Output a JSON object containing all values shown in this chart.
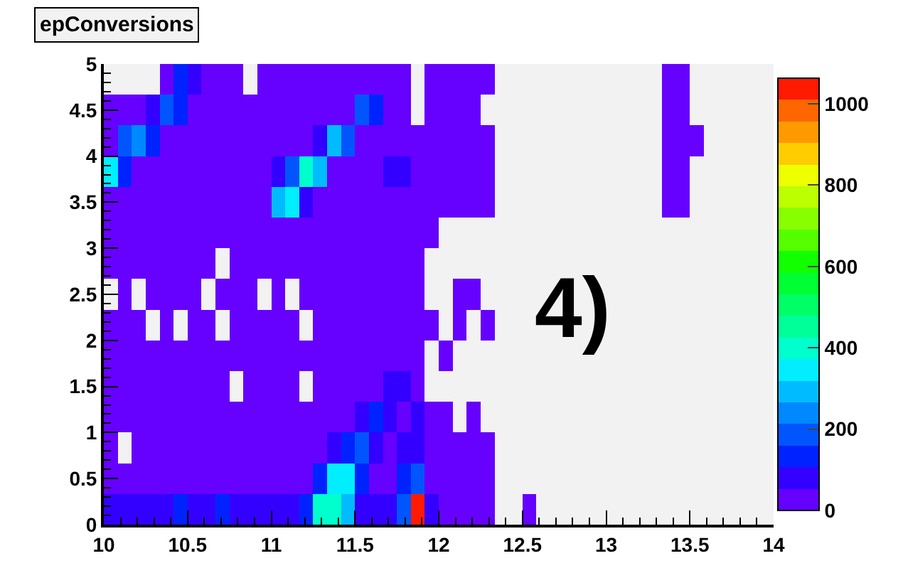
{
  "chart_data": {
    "type": "heatmap",
    "title": "epConversions",
    "annotations": [
      "4)"
    ],
    "xlim": [
      10,
      14
    ],
    "ylim": [
      0,
      5
    ],
    "xticks": [
      10,
      10.5,
      11,
      11.5,
      12,
      12.5,
      13,
      13.5,
      14
    ],
    "yticks": [
      0,
      0.5,
      1,
      1.5,
      2,
      2.5,
      3,
      3.5,
      4,
      4.5,
      5
    ],
    "clim": [
      0,
      1063
    ],
    "cticks": [
      0,
      200,
      400,
      600,
      800,
      1000
    ],
    "cells": [
      [
        null,
        null,
        null,
        null,
        25,
        130,
        80,
        25,
        25,
        25,
        null,
        25,
        25,
        25,
        25,
        25,
        25,
        25,
        25,
        25,
        25,
        25,
        null,
        25,
        25,
        25,
        25,
        25,
        null,
        null,
        null,
        null,
        null,
        null,
        null,
        null,
        null,
        null,
        null,
        null,
        25,
        25,
        null,
        null,
        null,
        null,
        null,
        null
      ],
      [
        25,
        25,
        25,
        80,
        185,
        130,
        25,
        25,
        25,
        25,
        25,
        25,
        25,
        25,
        25,
        25,
        25,
        25,
        185,
        130,
        25,
        25,
        null,
        25,
        25,
        25,
        25,
        null,
        null,
        null,
        null,
        null,
        null,
        null,
        null,
        null,
        null,
        null,
        null,
        null,
        25,
        25,
        null,
        null,
        null,
        null,
        null,
        null
      ],
      [
        25,
        185,
        240,
        130,
        25,
        25,
        25,
        25,
        25,
        25,
        25,
        25,
        25,
        25,
        25,
        80,
        290,
        185,
        25,
        25,
        25,
        25,
        25,
        25,
        25,
        25,
        25,
        25,
        null,
        null,
        null,
        null,
        null,
        null,
        null,
        null,
        null,
        null,
        null,
        null,
        25,
        25,
        25,
        null,
        null,
        null,
        null,
        null
      ],
      [
        345,
        130,
        25,
        25,
        25,
        25,
        25,
        25,
        25,
        25,
        25,
        25,
        80,
        185,
        400,
        290,
        25,
        25,
        25,
        25,
        80,
        80,
        25,
        25,
        25,
        25,
        25,
        25,
        null,
        null,
        null,
        null,
        null,
        null,
        null,
        null,
        null,
        null,
        null,
        null,
        25,
        25,
        null,
        null,
        null,
        null,
        null,
        null
      ],
      [
        25,
        25,
        25,
        25,
        25,
        25,
        25,
        25,
        25,
        25,
        25,
        25,
        290,
        345,
        80,
        25,
        25,
        25,
        25,
        25,
        25,
        25,
        25,
        25,
        25,
        25,
        25,
        25,
        null,
        null,
        null,
        null,
        null,
        null,
        null,
        null,
        null,
        null,
        null,
        null,
        25,
        25,
        null,
        null,
        null,
        null,
        null,
        null
      ],
      [
        25,
        25,
        25,
        25,
        25,
        25,
        25,
        25,
        25,
        25,
        25,
        25,
        25,
        25,
        25,
        25,
        25,
        25,
        25,
        25,
        25,
        25,
        25,
        25,
        null,
        null,
        null,
        null,
        null,
        null,
        null,
        null,
        null,
        null,
        null,
        null,
        null,
        null,
        null,
        null,
        null,
        null,
        null,
        null,
        null,
        null,
        null,
        null
      ],
      [
        25,
        25,
        25,
        25,
        25,
        25,
        25,
        25,
        null,
        25,
        25,
        25,
        25,
        25,
        25,
        25,
        25,
        25,
        25,
        25,
        25,
        25,
        25,
        null,
        null,
        null,
        null,
        null,
        null,
        null,
        null,
        null,
        null,
        null,
        null,
        null,
        null,
        null,
        null,
        null,
        null,
        null,
        null,
        null,
        null,
        null,
        null,
        null
      ],
      [
        null,
        25,
        null,
        25,
        25,
        25,
        25,
        null,
        25,
        25,
        25,
        null,
        25,
        null,
        25,
        25,
        25,
        25,
        25,
        25,
        25,
        25,
        25,
        null,
        null,
        25,
        25,
        null,
        null,
        null,
        null,
        null,
        null,
        null,
        null,
        null,
        null,
        null,
        null,
        null,
        null,
        null,
        null,
        null,
        null,
        null,
        null,
        null
      ],
      [
        25,
        25,
        25,
        null,
        25,
        null,
        25,
        25,
        null,
        25,
        25,
        25,
        25,
        25,
        null,
        25,
        25,
        25,
        25,
        25,
        25,
        25,
        25,
        25,
        null,
        25,
        null,
        25,
        null,
        null,
        null,
        null,
        null,
        null,
        null,
        null,
        null,
        null,
        null,
        null,
        null,
        null,
        null,
        null,
        null,
        null,
        null,
        null
      ],
      [
        25,
        25,
        25,
        25,
        25,
        25,
        25,
        25,
        25,
        25,
        25,
        25,
        25,
        25,
        25,
        25,
        25,
        25,
        25,
        25,
        25,
        25,
        25,
        null,
        25,
        null,
        null,
        null,
        null,
        null,
        null,
        null,
        null,
        null,
        null,
        null,
        null,
        null,
        null,
        null,
        null,
        null,
        null,
        null,
        null,
        null,
        null,
        null
      ],
      [
        25,
        25,
        25,
        25,
        25,
        25,
        25,
        25,
        25,
        null,
        25,
        25,
        25,
        25,
        null,
        25,
        25,
        25,
        25,
        25,
        80,
        80,
        25,
        null,
        null,
        null,
        null,
        null,
        null,
        null,
        null,
        null,
        null,
        null,
        null,
        null,
        null,
        null,
        null,
        null,
        null,
        null,
        null,
        null,
        null,
        null,
        null,
        null
      ],
      [
        25,
        25,
        25,
        25,
        25,
        25,
        25,
        25,
        25,
        25,
        25,
        25,
        25,
        25,
        25,
        25,
        25,
        25,
        80,
        130,
        80,
        25,
        80,
        25,
        25,
        null,
        25,
        null,
        null,
        null,
        null,
        null,
        null,
        null,
        null,
        null,
        null,
        null,
        null,
        null,
        null,
        null,
        null,
        null,
        null,
        null,
        null,
        null
      ],
      [
        25,
        null,
        25,
        25,
        25,
        25,
        25,
        25,
        25,
        25,
        25,
        25,
        25,
        25,
        25,
        25,
        80,
        130,
        185,
        80,
        25,
        80,
        80,
        25,
        25,
        25,
        25,
        25,
        null,
        null,
        null,
        null,
        null,
        null,
        null,
        null,
        null,
        null,
        null,
        null,
        null,
        null,
        null,
        null,
        null,
        null,
        null,
        null
      ],
      [
        25,
        25,
        25,
        25,
        25,
        25,
        25,
        25,
        25,
        25,
        25,
        25,
        25,
        25,
        25,
        130,
        345,
        345,
        130,
        25,
        25,
        130,
        185,
        25,
        25,
        25,
        25,
        25,
        null,
        null,
        null,
        null,
        null,
        null,
        null,
        null,
        null,
        null,
        null,
        null,
        null,
        null,
        null,
        null,
        null,
        null,
        null,
        null
      ],
      [
        80,
        80,
        80,
        80,
        80,
        130,
        80,
        80,
        130,
        80,
        80,
        80,
        80,
        80,
        130,
        400,
        400,
        290,
        80,
        80,
        80,
        185,
        1040,
        80,
        25,
        25,
        25,
        25,
        null,
        null,
        25,
        null,
        null,
        null,
        null,
        null,
        null,
        null,
        null,
        null,
        null,
        null,
        null,
        null,
        null,
        null,
        null,
        null
      ]
    ]
  }
}
